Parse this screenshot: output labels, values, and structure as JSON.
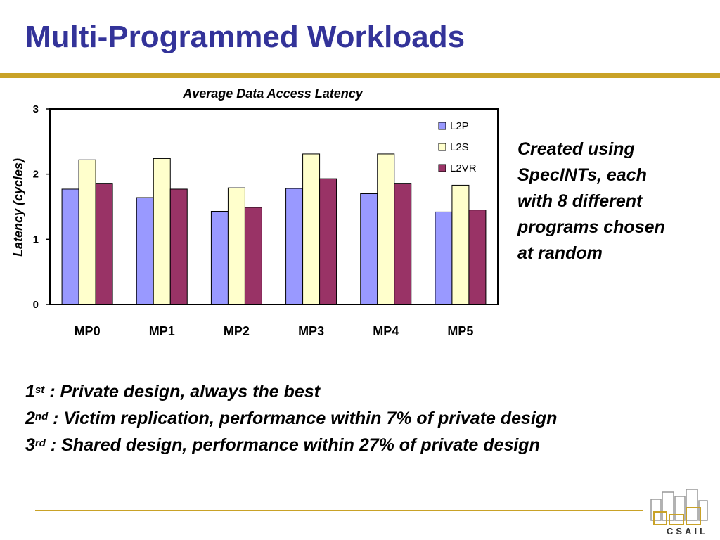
{
  "slide": {
    "title": "Multi-Programmed Workloads",
    "side_note_lines": [
      "Created using",
      "SpecINTs, each",
      "with 8 different",
      "programs chosen",
      "at random"
    ],
    "bullets": [
      {
        "num": "1",
        "sup": "st",
        "text": " :  Private design, always the best"
      },
      {
        "num": "2",
        "sup": "nd",
        "text": " : Victim replication, performance within 7% of private design"
      },
      {
        "num": "3",
        "sup": "rd",
        "text": " : Shared design, performance within 27% of private design"
      }
    ],
    "logo_text": "CSAIL",
    "colors": {
      "title": "#333399",
      "rule": "#c9a227"
    }
  },
  "chart_data": {
    "type": "bar",
    "title": "Average Data Access Latency",
    "xlabel": "",
    "ylabel": "Latency (cycles)",
    "categories": [
      "MP0",
      "MP1",
      "MP2",
      "MP3",
      "MP4",
      "MP5"
    ],
    "ylim": [
      0,
      3
    ],
    "yticks": [
      0,
      1,
      2,
      3
    ],
    "grid": false,
    "legend_position": "top-right",
    "series": [
      {
        "name": "L2P",
        "color": "#9999ff",
        "values": [
          1.77,
          1.64,
          1.43,
          1.78,
          1.7,
          1.42
        ]
      },
      {
        "name": "L2S",
        "color": "#ffffcc",
        "values": [
          2.22,
          2.24,
          1.79,
          2.31,
          2.31,
          1.83
        ]
      },
      {
        "name": "L2VR",
        "color": "#993366",
        "values": [
          1.86,
          1.77,
          1.49,
          1.93,
          1.86,
          1.45
        ]
      }
    ]
  }
}
